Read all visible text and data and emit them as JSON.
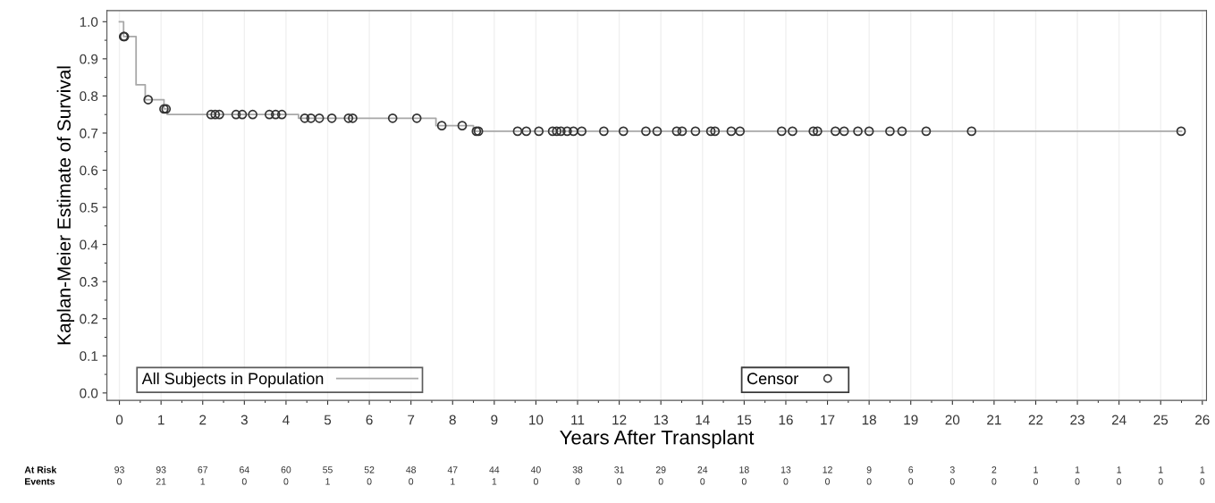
{
  "chart_data": {
    "type": "step",
    "xlabel": "Years After Transplant",
    "ylabel": "Kaplan-Meier Estimate of Survival",
    "series": [
      {
        "name": "All Subjects in Population",
        "color": "#a8a8a8",
        "marker": "none",
        "x": [
          0,
          0.1,
          0.4,
          0.62,
          1.07,
          1.15,
          4.3,
          7.6,
          8.5,
          25.5
        ],
        "values": [
          1.0,
          0.96,
          0.83,
          0.79,
          0.765,
          0.75,
          0.74,
          0.72,
          0.705,
          0.705
        ]
      },
      {
        "name": "Censor",
        "type": "scatter",
        "color": "#333333",
        "marker": "circle",
        "x": [
          0.1,
          0.12,
          0.69,
          1.07,
          1.12,
          2.2,
          2.3,
          2.4,
          2.8,
          2.95,
          3.2,
          3.6,
          3.75,
          3.9,
          4.45,
          4.6,
          4.8,
          5.1,
          5.5,
          5.6,
          6.56,
          7.14,
          7.74,
          8.23,
          8.57,
          8.62,
          9.56,
          9.77,
          10.07,
          10.4,
          10.5,
          10.6,
          10.75,
          10.9,
          11.1,
          11.63,
          12.1,
          12.64,
          12.91,
          13.38,
          13.51,
          13.83,
          14.2,
          14.3,
          14.69,
          14.9,
          15.9,
          16.16,
          16.66,
          16.76,
          17.19,
          17.4,
          17.73,
          18.0,
          18.5,
          18.79,
          19.37,
          20.46,
          25.49
        ],
        "values": [
          0.96,
          0.96,
          0.79,
          0.765,
          0.765,
          0.75,
          0.75,
          0.75,
          0.75,
          0.75,
          0.75,
          0.75,
          0.75,
          0.75,
          0.74,
          0.74,
          0.74,
          0.74,
          0.74,
          0.74,
          0.74,
          0.74,
          0.72,
          0.72,
          0.705,
          0.705,
          0.705,
          0.705,
          0.705,
          0.705,
          0.705,
          0.705,
          0.705,
          0.705,
          0.705,
          0.705,
          0.705,
          0.705,
          0.705,
          0.705,
          0.705,
          0.705,
          0.705,
          0.705,
          0.705,
          0.705,
          0.705,
          0.705,
          0.705,
          0.705,
          0.705,
          0.705,
          0.705,
          0.705,
          0.705,
          0.705,
          0.705,
          0.705,
          0.705
        ]
      }
    ],
    "xlim": [
      -0.3,
      26.1
    ],
    "xticks": [
      0,
      1,
      2,
      3,
      4,
      5,
      6,
      7,
      8,
      9,
      10,
      11,
      12,
      13,
      14,
      15,
      16,
      17,
      18,
      19,
      20,
      21,
      22,
      23,
      24,
      25,
      26
    ],
    "ylim": [
      -0.02,
      1.03
    ],
    "yticks": [
      {
        "value": 0,
        "label": "0.0"
      },
      0.1,
      0.2,
      0.3,
      0.4,
      0.5,
      0.6,
      0.7,
      0.8,
      0.9,
      {
        "value": 1,
        "label": "1.0"
      }
    ],
    "grid": "x",
    "legend": "bottom",
    "annotations": [
      "At Risk",
      "93",
      "93",
      "67",
      "64",
      "60",
      "55",
      "52",
      "48",
      "47",
      "44",
      "40",
      "38",
      "31",
      "29",
      "24",
      "18",
      "13",
      "12",
      "9",
      "6",
      "3",
      "2",
      "1",
      "1",
      "1",
      "1",
      "1",
      "Events",
      "0",
      "21",
      "1",
      "0",
      "0",
      "1",
      "0",
      "0",
      "1",
      "1",
      "0",
      "0",
      "0",
      "0",
      "0",
      "0",
      "0",
      "0",
      "0",
      "0",
      "0",
      "0",
      "0",
      "0",
      "0",
      "0",
      "0"
    ]
  }
}
